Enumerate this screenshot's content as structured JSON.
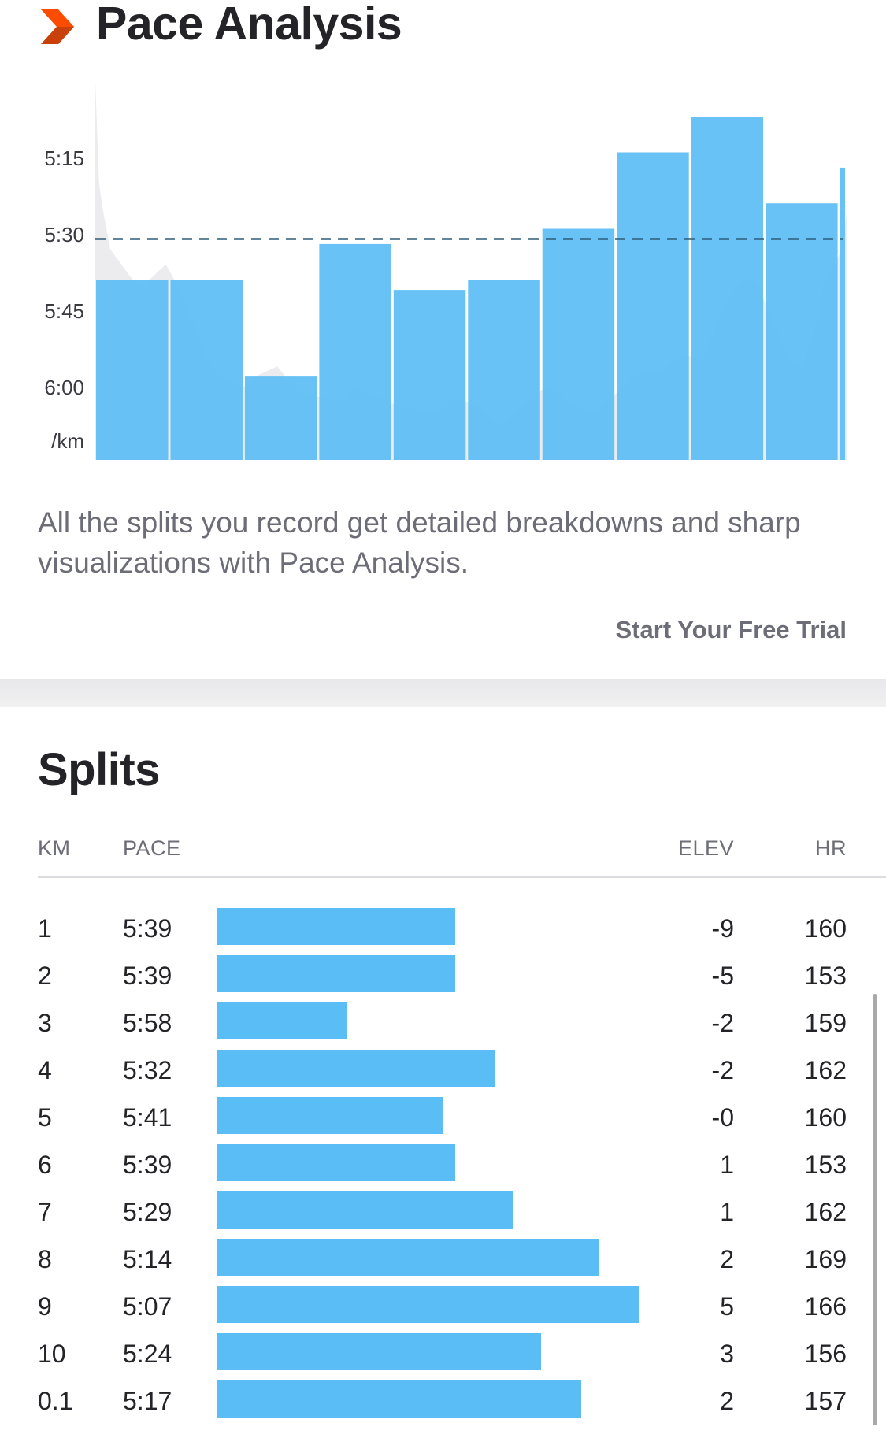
{
  "pace_analysis": {
    "title": "Pace Analysis",
    "description": "All the splits you record get detailed breakdowns and sharp visualizations with Pace Analysis.",
    "cta_label": "Start Your Free Trial",
    "icon": "chevron-right-icon",
    "accent_color": "#fc4c02"
  },
  "chart_data": {
    "type": "bar",
    "y_tick_labels": [
      "5:15",
      "5:30",
      "5:45",
      "6:00",
      "/km"
    ],
    "y_ticks_seconds": [
      315,
      330,
      345,
      360
    ],
    "y_inverted": true,
    "reference_line": {
      "value": "5:31",
      "value_seconds": 331,
      "style": "dashed"
    },
    "categories": [
      "1",
      "2",
      "3",
      "4",
      "5",
      "6",
      "7",
      "8",
      "9",
      "10",
      "0.1"
    ],
    "values": [
      "5:39",
      "5:39",
      "5:58",
      "5:32",
      "5:41",
      "5:39",
      "5:29",
      "5:14",
      "5:07",
      "5:24",
      "5:17"
    ],
    "values_seconds": [
      339,
      339,
      358,
      332,
      341,
      339,
      329,
      314,
      307,
      324,
      317
    ],
    "distance_km": [
      1,
      1,
      1,
      1,
      1,
      1,
      1,
      1,
      1,
      1,
      0.1
    ],
    "bar_color": "#5bbdf5",
    "background_series": {
      "type": "area",
      "name": "",
      "color": "rgba(150,150,160,0.18)",
      "x_km": [
        0,
        0.05,
        0.1,
        0.2,
        0.35,
        0.5,
        0.65,
        0.8,
        0.95,
        1.1,
        1.25,
        1.4,
        1.55,
        1.7,
        1.85,
        2.0,
        2.15,
        2.3,
        2.45,
        2.6,
        2.75,
        2.9,
        3.05,
        3.2,
        3.35,
        3.5,
        3.65,
        3.8,
        3.95,
        4.1,
        4.25,
        4.4,
        4.55,
        4.7,
        4.85,
        5.0,
        5.15,
        5.3,
        5.45,
        5.6,
        5.75,
        5.9,
        6.05,
        6.2,
        6.35,
        6.5,
        6.65,
        6.8,
        6.95,
        7.1,
        7.25,
        7.4,
        7.55,
        7.7,
        7.85,
        8.0,
        8.15,
        8.3,
        8.45,
        8.6,
        8.75,
        8.9,
        9.05,
        9.2,
        9.35,
        9.5,
        9.65,
        9.8,
        9.95,
        10.0,
        10.1
      ],
      "pace_seconds": [
        300,
        320,
        325,
        333,
        336,
        339,
        340,
        338,
        336,
        340,
        345,
        350,
        356,
        358,
        359,
        360,
        358,
        357,
        356,
        359,
        361,
        362,
        362,
        363,
        362,
        360,
        361,
        362,
        363,
        364,
        364,
        365,
        365,
        364,
        362,
        363,
        364,
        366,
        368,
        366,
        364,
        362,
        360,
        361,
        363,
        364,
        365,
        364,
        362,
        360,
        358,
        357,
        357,
        356,
        354,
        354,
        355,
        350,
        344,
        341,
        339,
        340,
        345,
        350,
        355,
        356,
        350,
        339,
        336,
        334,
        326
      ]
    }
  },
  "splits": {
    "title": "Splits",
    "headers": {
      "km": "KM",
      "pace": "PACE",
      "elev": "ELEV",
      "hr": "HR"
    },
    "bar_color": "#5bbdf5",
    "rows": [
      {
        "km": "1",
        "pace": "5:39",
        "elev": "-9",
        "hr": "160"
      },
      {
        "km": "2",
        "pace": "5:39",
        "elev": "-5",
        "hr": "153"
      },
      {
        "km": "3",
        "pace": "5:58",
        "elev": "-2",
        "hr": "159"
      },
      {
        "km": "4",
        "pace": "5:32",
        "elev": "-2",
        "hr": "162"
      },
      {
        "km": "5",
        "pace": "5:41",
        "elev": "-0",
        "hr": "160"
      },
      {
        "km": "6",
        "pace": "5:39",
        "elev": "1",
        "hr": "153"
      },
      {
        "km": "7",
        "pace": "5:29",
        "elev": "1",
        "hr": "162"
      },
      {
        "km": "8",
        "pace": "5:14",
        "elev": "2",
        "hr": "169"
      },
      {
        "km": "9",
        "pace": "5:07",
        "elev": "5",
        "hr": "166"
      },
      {
        "km": "10",
        "pace": "5:24",
        "elev": "3",
        "hr": "156"
      },
      {
        "km": "0.1",
        "pace": "5:17",
        "elev": "2",
        "hr": "157"
      }
    ]
  }
}
